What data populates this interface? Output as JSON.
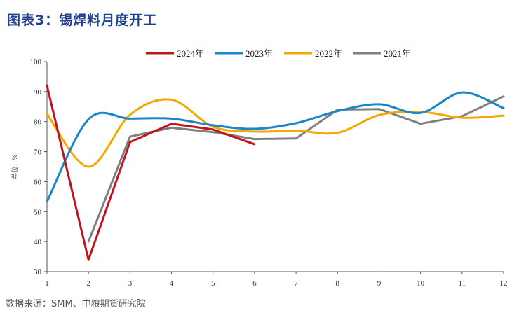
{
  "header": {
    "title": "图表3：锡焊料月度开工"
  },
  "footer": {
    "source": "数据来源：SMM、中粮期货研究院"
  },
  "chart_data": {
    "type": "line",
    "title": "图表3：锡焊料月度开工",
    "xlabel": "",
    "ylabel": "单位：%",
    "x": [
      1,
      2,
      3,
      4,
      5,
      6,
      7,
      8,
      9,
      10,
      11,
      12
    ],
    "xlim": [
      1,
      12
    ],
    "ylim": [
      30,
      100
    ],
    "yticks": [
      30,
      40,
      50,
      60,
      70,
      80,
      90,
      100
    ],
    "legend_position": "top",
    "grid": false,
    "series": [
      {
        "name": "2024年",
        "color": "#c0141b",
        "smooth": false,
        "values": [
          92.0,
          33.9,
          73.2,
          79.3,
          77.4,
          72.5,
          null,
          null,
          null,
          null,
          null,
          null
        ]
      },
      {
        "name": "2023年",
        "color": "#1a85c8",
        "smooth": true,
        "values": [
          53.3,
          80.8,
          81.0,
          81.0,
          78.8,
          77.6,
          79.5,
          83.5,
          85.8,
          82.9,
          89.7,
          84.5
        ]
      },
      {
        "name": "2022年",
        "color": "#f2a900",
        "smooth": true,
        "values": [
          82.6,
          65.0,
          82.3,
          87.3,
          78.3,
          76.7,
          77.0,
          76.3,
          82.2,
          83.3,
          81.3,
          82.0
        ]
      },
      {
        "name": "2021年",
        "color": "#7f7f7f",
        "smooth": false,
        "values": [
          null,
          40.0,
          75.0,
          78.0,
          76.5,
          74.2,
          74.4,
          84.0,
          84.2,
          79.3,
          81.8,
          88.4
        ]
      }
    ]
  }
}
